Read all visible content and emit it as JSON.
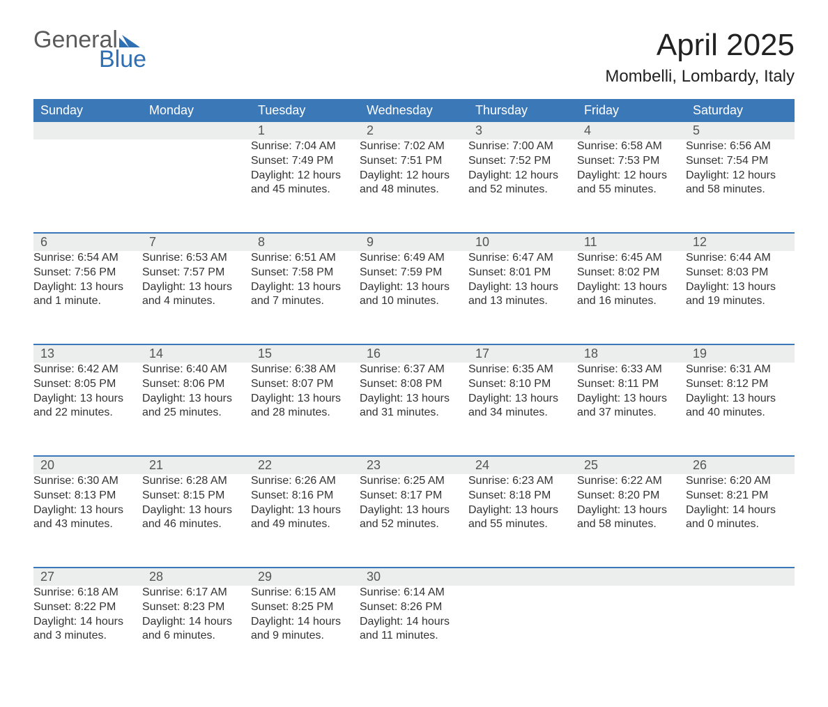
{
  "brand": {
    "word1": "General",
    "word2": "Blue",
    "flag_color": "#2f6fb3"
  },
  "title": "April 2025",
  "location": "Mombelli, Lombardy, Italy",
  "colors": {
    "header_bg": "#3b78b8",
    "header_fg": "#ffffff",
    "daynum_bg": "#eceded",
    "row_border": "#3b78b8",
    "text": "#333333",
    "brand_gray": "#5a5a5a",
    "brand_blue": "#2f6fb3",
    "page_bg": "#ffffff"
  },
  "weekdays": [
    "Sunday",
    "Monday",
    "Tuesday",
    "Wednesday",
    "Thursday",
    "Friday",
    "Saturday"
  ],
  "weeks": [
    [
      null,
      null,
      {
        "n": "1",
        "sr": "7:04 AM",
        "ss": "7:49 PM",
        "dl": "12 hours and 45 minutes."
      },
      {
        "n": "2",
        "sr": "7:02 AM",
        "ss": "7:51 PM",
        "dl": "12 hours and 48 minutes."
      },
      {
        "n": "3",
        "sr": "7:00 AM",
        "ss": "7:52 PM",
        "dl": "12 hours and 52 minutes."
      },
      {
        "n": "4",
        "sr": "6:58 AM",
        "ss": "7:53 PM",
        "dl": "12 hours and 55 minutes."
      },
      {
        "n": "5",
        "sr": "6:56 AM",
        "ss": "7:54 PM",
        "dl": "12 hours and 58 minutes."
      }
    ],
    [
      {
        "n": "6",
        "sr": "6:54 AM",
        "ss": "7:56 PM",
        "dl": "13 hours and 1 minute."
      },
      {
        "n": "7",
        "sr": "6:53 AM",
        "ss": "7:57 PM",
        "dl": "13 hours and 4 minutes."
      },
      {
        "n": "8",
        "sr": "6:51 AM",
        "ss": "7:58 PM",
        "dl": "13 hours and 7 minutes."
      },
      {
        "n": "9",
        "sr": "6:49 AM",
        "ss": "7:59 PM",
        "dl": "13 hours and 10 minutes."
      },
      {
        "n": "10",
        "sr": "6:47 AM",
        "ss": "8:01 PM",
        "dl": "13 hours and 13 minutes."
      },
      {
        "n": "11",
        "sr": "6:45 AM",
        "ss": "8:02 PM",
        "dl": "13 hours and 16 minutes."
      },
      {
        "n": "12",
        "sr": "6:44 AM",
        "ss": "8:03 PM",
        "dl": "13 hours and 19 minutes."
      }
    ],
    [
      {
        "n": "13",
        "sr": "6:42 AM",
        "ss": "8:05 PM",
        "dl": "13 hours and 22 minutes."
      },
      {
        "n": "14",
        "sr": "6:40 AM",
        "ss": "8:06 PM",
        "dl": "13 hours and 25 minutes."
      },
      {
        "n": "15",
        "sr": "6:38 AM",
        "ss": "8:07 PM",
        "dl": "13 hours and 28 minutes."
      },
      {
        "n": "16",
        "sr": "6:37 AM",
        "ss": "8:08 PM",
        "dl": "13 hours and 31 minutes."
      },
      {
        "n": "17",
        "sr": "6:35 AM",
        "ss": "8:10 PM",
        "dl": "13 hours and 34 minutes."
      },
      {
        "n": "18",
        "sr": "6:33 AM",
        "ss": "8:11 PM",
        "dl": "13 hours and 37 minutes."
      },
      {
        "n": "19",
        "sr": "6:31 AM",
        "ss": "8:12 PM",
        "dl": "13 hours and 40 minutes."
      }
    ],
    [
      {
        "n": "20",
        "sr": "6:30 AM",
        "ss": "8:13 PM",
        "dl": "13 hours and 43 minutes."
      },
      {
        "n": "21",
        "sr": "6:28 AM",
        "ss": "8:15 PM",
        "dl": "13 hours and 46 minutes."
      },
      {
        "n": "22",
        "sr": "6:26 AM",
        "ss": "8:16 PM",
        "dl": "13 hours and 49 minutes."
      },
      {
        "n": "23",
        "sr": "6:25 AM",
        "ss": "8:17 PM",
        "dl": "13 hours and 52 minutes."
      },
      {
        "n": "24",
        "sr": "6:23 AM",
        "ss": "8:18 PM",
        "dl": "13 hours and 55 minutes."
      },
      {
        "n": "25",
        "sr": "6:22 AM",
        "ss": "8:20 PM",
        "dl": "13 hours and 58 minutes."
      },
      {
        "n": "26",
        "sr": "6:20 AM",
        "ss": "8:21 PM",
        "dl": "14 hours and 0 minutes."
      }
    ],
    [
      {
        "n": "27",
        "sr": "6:18 AM",
        "ss": "8:22 PM",
        "dl": "14 hours and 3 minutes."
      },
      {
        "n": "28",
        "sr": "6:17 AM",
        "ss": "8:23 PM",
        "dl": "14 hours and 6 minutes."
      },
      {
        "n": "29",
        "sr": "6:15 AM",
        "ss": "8:25 PM",
        "dl": "14 hours and 9 minutes."
      },
      {
        "n": "30",
        "sr": "6:14 AM",
        "ss": "8:26 PM",
        "dl": "14 hours and 11 minutes."
      },
      null,
      null,
      null
    ]
  ],
  "labels": {
    "sunrise": "Sunrise: ",
    "sunset": "Sunset: ",
    "daylight": "Daylight: "
  }
}
